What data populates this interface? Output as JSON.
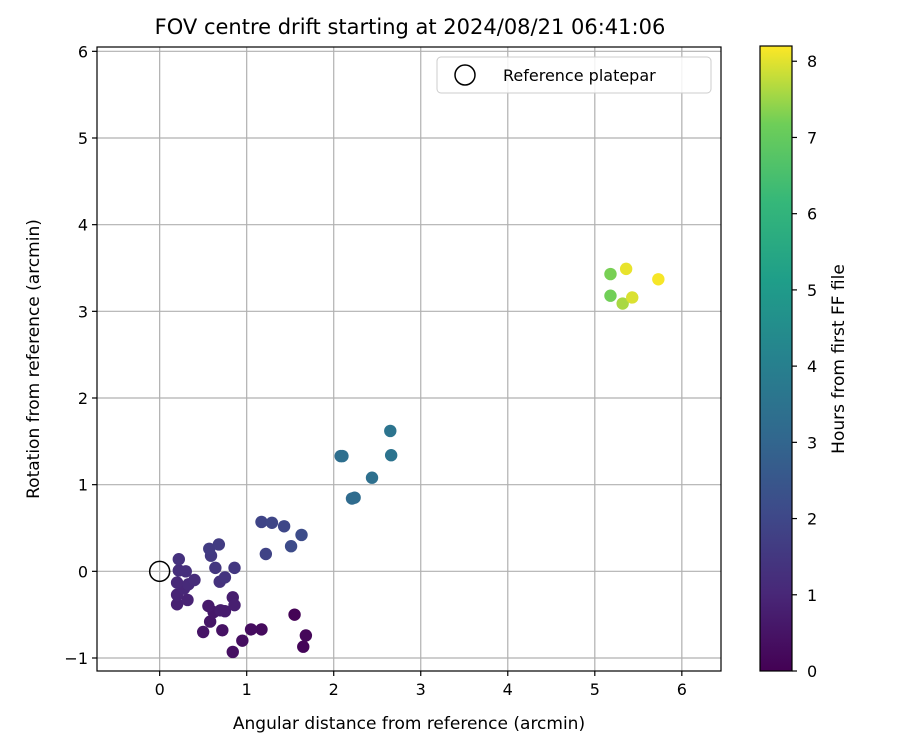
{
  "chart_data": {
    "type": "scatter",
    "title": "FOV centre drift starting at 2024/08/21 06:41:06",
    "xlabel": "Angular distance from reference (arcmin)",
    "ylabel": "Rotation from reference (arcmin)",
    "xlim": [
      -0.72,
      6.45
    ],
    "ylim": [
      -1.15,
      6.05
    ],
    "xticks": [
      0,
      1,
      2,
      3,
      4,
      5,
      6
    ],
    "yticks": [
      -1,
      0,
      1,
      2,
      3,
      4,
      5,
      6
    ],
    "grid": true,
    "legend": {
      "placement": "top-right",
      "entries": [
        "Reference platepar"
      ]
    },
    "reference_point": {
      "name": "Reference platepar",
      "x": 0,
      "y": 0
    },
    "colorbar": {
      "label": "Hours from first FF file",
      "colormap": "viridis",
      "range": [
        0,
        8.2
      ],
      "ticks": [
        0,
        1,
        2,
        3,
        4,
        5,
        6,
        7,
        8
      ]
    },
    "points": [
      {
        "x": 1.55,
        "y": -0.5,
        "c": 0.05
      },
      {
        "x": 1.65,
        "y": -0.87,
        "c": 0.1
      },
      {
        "x": 1.68,
        "y": -0.74,
        "c": 0.15
      },
      {
        "x": 1.17,
        "y": -0.67,
        "c": 0.25
      },
      {
        "x": 1.05,
        "y": -0.67,
        "c": 0.3
      },
      {
        "x": 0.95,
        "y": -0.8,
        "c": 0.35
      },
      {
        "x": 0.84,
        "y": -0.93,
        "c": 0.4
      },
      {
        "x": 0.72,
        "y": -0.68,
        "c": 0.45
      },
      {
        "x": 0.5,
        "y": -0.7,
        "c": 0.5
      },
      {
        "x": 0.58,
        "y": -0.58,
        "c": 0.55
      },
      {
        "x": 0.62,
        "y": -0.47,
        "c": 0.6
      },
      {
        "x": 0.56,
        "y": -0.4,
        "c": 0.65
      },
      {
        "x": 0.7,
        "y": -0.45,
        "c": 0.7
      },
      {
        "x": 0.75,
        "y": -0.46,
        "c": 0.72
      },
      {
        "x": 0.84,
        "y": -0.3,
        "c": 0.75
      },
      {
        "x": 0.86,
        "y": -0.39,
        "c": 0.8
      },
      {
        "x": 0.2,
        "y": -0.38,
        "c": 0.85
      },
      {
        "x": 0.32,
        "y": -0.33,
        "c": 0.9
      },
      {
        "x": 0.2,
        "y": -0.27,
        "c": 0.95
      },
      {
        "x": 0.28,
        "y": -0.2,
        "c": 1.0
      },
      {
        "x": 0.2,
        "y": -0.13,
        "c": 1.05
      },
      {
        "x": 0.33,
        "y": -0.15,
        "c": 1.1
      },
      {
        "x": 0.4,
        "y": -0.1,
        "c": 1.15
      },
      {
        "x": 0.22,
        "y": 0.01,
        "c": 1.2
      },
      {
        "x": 0.3,
        "y": 0.0,
        "c": 1.25
      },
      {
        "x": 0.22,
        "y": 0.14,
        "c": 1.3
      },
      {
        "x": 0.69,
        "y": -0.12,
        "c": 1.35
      },
      {
        "x": 0.75,
        "y": -0.07,
        "c": 1.4
      },
      {
        "x": 0.64,
        "y": 0.04,
        "c": 1.45
      },
      {
        "x": 0.86,
        "y": 0.04,
        "c": 1.5
      },
      {
        "x": 0.59,
        "y": 0.18,
        "c": 1.55
      },
      {
        "x": 0.57,
        "y": 0.26,
        "c": 1.6
      },
      {
        "x": 0.68,
        "y": 0.31,
        "c": 1.65
      },
      {
        "x": 1.22,
        "y": 0.2,
        "c": 1.85
      },
      {
        "x": 1.17,
        "y": 0.57,
        "c": 1.9
      },
      {
        "x": 1.29,
        "y": 0.56,
        "c": 1.95
      },
      {
        "x": 1.43,
        "y": 0.52,
        "c": 2.0
      },
      {
        "x": 1.51,
        "y": 0.29,
        "c": 2.1
      },
      {
        "x": 1.63,
        "y": 0.42,
        "c": 2.15
      },
      {
        "x": 2.21,
        "y": 0.84,
        "c": 3.2
      },
      {
        "x": 2.24,
        "y": 0.85,
        "c": 3.25
      },
      {
        "x": 2.08,
        "y": 1.33,
        "c": 3.3
      },
      {
        "x": 2.1,
        "y": 1.33,
        "c": 3.35
      },
      {
        "x": 2.44,
        "y": 1.08,
        "c": 3.4
      },
      {
        "x": 2.66,
        "y": 1.34,
        "c": 3.5
      },
      {
        "x": 2.65,
        "y": 1.62,
        "c": 3.55
      },
      {
        "x": 5.18,
        "y": 3.18,
        "c": 7.2
      },
      {
        "x": 5.18,
        "y": 3.43,
        "c": 7.25
      },
      {
        "x": 5.32,
        "y": 3.09,
        "c": 7.6
      },
      {
        "x": 5.43,
        "y": 3.16,
        "c": 7.95
      },
      {
        "x": 5.36,
        "y": 3.49,
        "c": 8.05
      },
      {
        "x": 5.73,
        "y": 3.37,
        "c": 8.15
      }
    ]
  }
}
